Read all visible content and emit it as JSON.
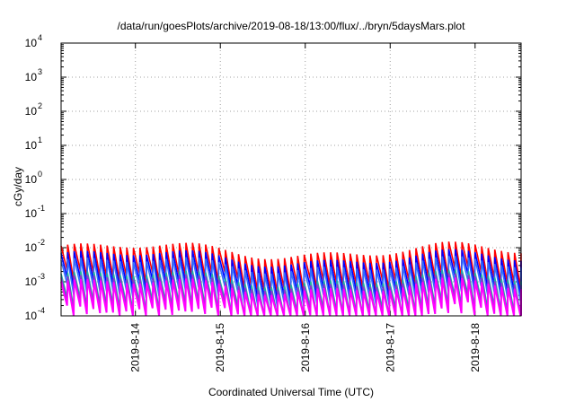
{
  "chart_data": {
    "type": "line",
    "title": "/data/run/goesPlots/archive/2019-08-18/13:00/flux/../bryn/5daysMars.plot",
    "xlabel": "Coordinated Universal Time (UTC)",
    "ylabel": "cGy/day",
    "yscale": "log",
    "ylim": [
      0.0001,
      10000
    ],
    "yticks": [
      {
        "value": 0.0001,
        "exp": "-4"
      },
      {
        "value": 0.001,
        "exp": "-3"
      },
      {
        "value": 0.01,
        "exp": "-2"
      },
      {
        "value": 0.1,
        "exp": "-1"
      },
      {
        "value": 1,
        "exp": "0"
      },
      {
        "value": 10,
        "exp": "1"
      },
      {
        "value": 100,
        "exp": "2"
      },
      {
        "value": 1000,
        "exp": "3"
      },
      {
        "value": 10000,
        "exp": "4"
      }
    ],
    "xlim": [
      "2019-08-13T03:00",
      "2019-08-18T13:00"
    ],
    "xticks": [
      "2019-8-14",
      "2019-8-15",
      "2019-8-16",
      "2019-8-17",
      "2019-8-18"
    ],
    "grid": true,
    "colors": [
      "#ff0000",
      "#0000ff",
      "#3070ff",
      "#20b0a0",
      "#9030d0",
      "#ff00ff"
    ]
  }
}
